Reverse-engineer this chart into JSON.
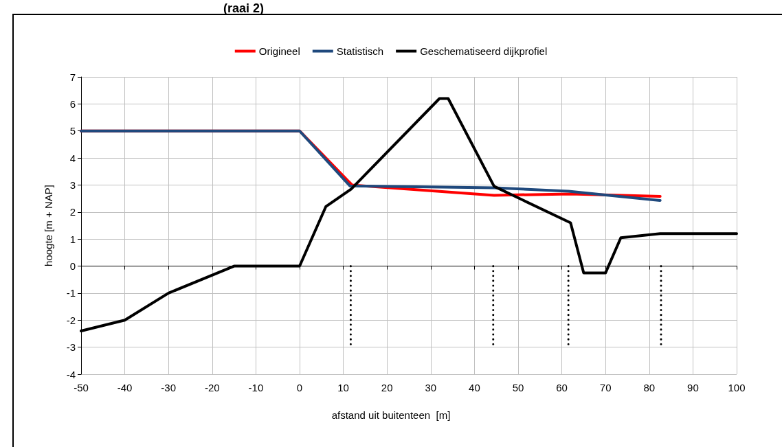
{
  "chart_data": {
    "type": "line",
    "title": "(raai 2)",
    "xlabel": "afstand uit buitenteen  [m]",
    "ylabel": "hoogte [m + NAP]",
    "xlim": [
      -50,
      100
    ],
    "xticks": [
      -50,
      -40,
      -30,
      -20,
      -10,
      0,
      10,
      20,
      30,
      40,
      50,
      60,
      70,
      80,
      90,
      100
    ],
    "ylim": [
      -4,
      7
    ],
    "yticks": [
      -4,
      -3,
      -2,
      -1,
      0,
      1,
      2,
      3,
      4,
      5,
      6,
      7
    ],
    "grid": true,
    "legend": "top",
    "marker": "none",
    "line_style": "solid",
    "series": [
      {
        "name": "Origineel",
        "color": "#ff0000",
        "x": [
          -50,
          0,
          12,
          44.5,
          62,
          82.5
        ],
        "values": [
          5,
          5,
          3,
          2.62,
          2.67,
          2.58
        ]
      },
      {
        "name": "Statistisch",
        "color": "#1f497d",
        "x": [
          -50,
          0,
          11.5,
          44.5,
          61.5,
          70,
          82.5
        ],
        "values": [
          5,
          5,
          2.97,
          2.9,
          2.77,
          2.63,
          2.43
        ]
      },
      {
        "name": "Geschematiseerd dijkprofiel",
        "color": "#000000",
        "x": [
          -50,
          -40,
          -30,
          -15,
          0,
          6,
          11.8,
          32,
          34,
          44.5,
          62,
          65,
          70,
          73.5,
          82.5,
          100
        ],
        "values": [
          -2.4,
          -2,
          -1,
          0,
          0,
          2.2,
          2.85,
          6.2,
          6.2,
          2.95,
          1.6,
          -0.25,
          -0.25,
          1.05,
          1.2,
          1.2
        ]
      },
      {
        "color": "#000000",
        "line_style": "dotted",
        "x": [
          11.7,
          11.7
        ],
        "values": [
          0,
          -3
        ]
      },
      {
        "color": "#000000",
        "line_style": "dotted",
        "x": [
          44.3,
          44.3
        ],
        "values": [
          0,
          -3
        ]
      },
      {
        "color": "#000000",
        "line_style": "dotted",
        "x": [
          61.5,
          61.5
        ],
        "values": [
          0,
          -3
        ]
      },
      {
        "color": "#000000",
        "line_style": "dotted",
        "x": [
          82.7,
          82.7
        ],
        "values": [
          0,
          -3
        ]
      }
    ]
  }
}
